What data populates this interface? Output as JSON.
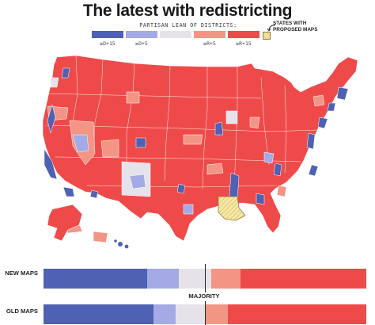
{
  "title": "The latest with redistricting",
  "legend": {
    "title": "PARTISAN LEAN OF DISTRICTS:",
    "categories": [
      {
        "label": "≥D+15",
        "color": "#4f61b2"
      },
      {
        "label": "≥D+5",
        "color": "#a3aae6"
      },
      {
        "label": "",
        "color": "#e6e2ea"
      },
      {
        "label": "≥R+5",
        "color": "#f29584"
      },
      {
        "label": "≥R+15",
        "color": "#ef4a4a"
      }
    ],
    "proposed_label": "STATES WITH PROPOSED MAPS",
    "proposed_color": "#f3e49b"
  },
  "bars": {
    "new_label": "NEW MAPS",
    "old_label": "OLD MAPS",
    "majority_label": "MAJORITY",
    "new_shares": [
      0.32,
      0.1,
      0.1,
      0.09,
      0.39
    ],
    "old_shares": [
      0.34,
      0.07,
      0.09,
      0.07,
      0.43
    ],
    "majority_share": 0.5
  }
}
